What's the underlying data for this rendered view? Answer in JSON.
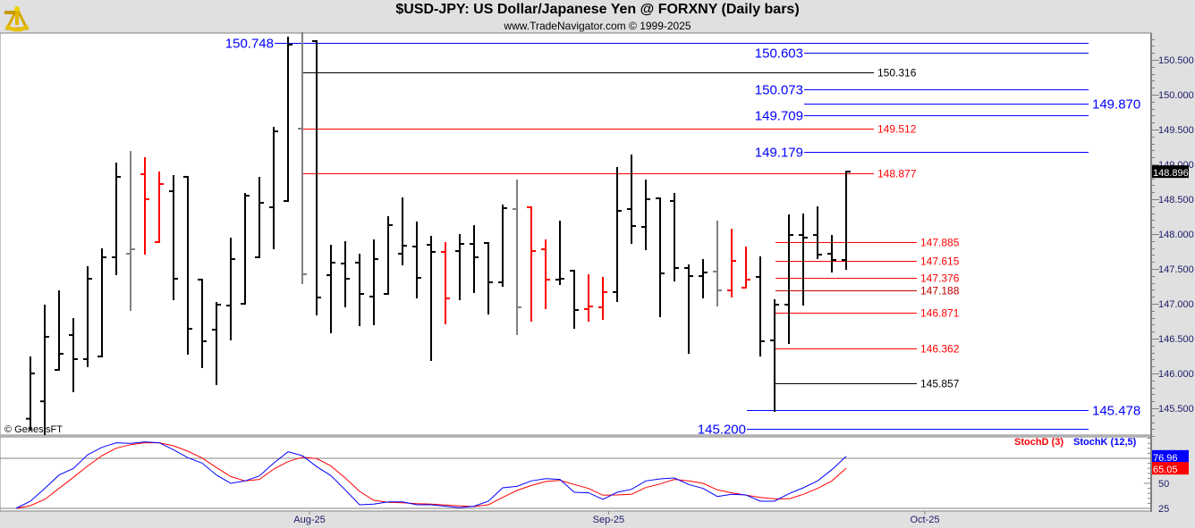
{
  "header": {
    "title": "$USD-JPY:  US Dollar/Japanese Yen @ FORXNY  (Daily bars)",
    "subtitle": "www.TradeNavigator.com © 1999-2025",
    "logo": "sextant-logo"
  },
  "watermark": "© GenesisFT",
  "colors": {
    "up": "#000000",
    "red": "#ff0000",
    "gray": "#808080",
    "blue": "#0000ff",
    "darkred": "#c00000"
  },
  "chart_data": [
    {
      "type": "ohlc",
      "title": "$USD-JPY Daily bars",
      "ylim": [
        145.05,
        150.9
      ],
      "y_ticks": [
        "145.500",
        "146.000",
        "146.500",
        "147.000",
        "147.500",
        "148.000",
        "148.500",
        "149.000",
        "149.500",
        "150.000",
        "150.500"
      ],
      "x_labels": [
        {
          "label": "Aug-25",
          "bar": 19.5
        },
        {
          "label": "Sep-25",
          "bar": 40.4
        },
        {
          "label": "Oct-25",
          "bar": 62.5
        }
      ],
      "last_price": "148.896",
      "bars": [
        {
          "o": 145.35,
          "h": 146.231,
          "l": 145.192,
          "c": 146.0,
          "color": "up"
        },
        {
          "o": 145.6,
          "h": 146.974,
          "l": 145.13,
          "c": 146.526,
          "color": "up"
        },
        {
          "o": 146.051,
          "h": 147.179,
          "l": 146.051,
          "c": 146.282,
          "color": "up"
        },
        {
          "o": 146.551,
          "h": 146.782,
          "l": 145.744,
          "c": 146.205,
          "color": "up"
        },
        {
          "o": 146.205,
          "h": 147.526,
          "l": 146.105,
          "c": 147.359,
          "color": "up"
        },
        {
          "o": 146.244,
          "h": 147.782,
          "l": 146.244,
          "c": 147.667,
          "color": "up"
        },
        {
          "o": 147.667,
          "h": 149.013,
          "l": 147.423,
          "c": 148.821,
          "color": "up"
        },
        {
          "o": 147.718,
          "h": 149.179,
          "l": 146.91,
          "c": 147.782,
          "color": "gray"
        },
        {
          "o": 148.859,
          "h": 149.09,
          "l": 147.718,
          "c": 148.5,
          "color": "red"
        },
        {
          "o": 147.885,
          "h": 148.885,
          "l": 147.885,
          "c": 148.718,
          "color": "red"
        },
        {
          "o": 148.615,
          "h": 148.833,
          "l": 147.064,
          "c": 147.359,
          "color": "up"
        },
        {
          "o": 148.821,
          "h": 148.821,
          "l": 146.282,
          "c": 146.641,
          "color": "up"
        },
        {
          "o": 147.346,
          "h": 147.346,
          "l": 146.09,
          "c": 146.462,
          "color": "up"
        },
        {
          "o": 146.628,
          "h": 147.013,
          "l": 145.846,
          "c": 146.987,
          "color": "up"
        },
        {
          "o": 146.974,
          "h": 147.936,
          "l": 146.487,
          "c": 147.641,
          "color": "up"
        },
        {
          "o": 147.0,
          "h": 148.577,
          "l": 147.0,
          "c": 148.551,
          "color": "up"
        },
        {
          "o": 147.667,
          "h": 148.808,
          "l": 147.667,
          "c": 148.449,
          "color": "up"
        },
        {
          "o": 148.385,
          "h": 149.526,
          "l": 147.795,
          "c": 149.474,
          "color": "up"
        },
        {
          "o": 148.474,
          "h": 150.82,
          "l": 148.474,
          "c": 150.718,
          "color": "up"
        },
        {
          "o": 149.513,
          "h": 150.885,
          "l": 147.295,
          "c": 147.423,
          "color": "gray"
        },
        {
          "o": 150.769,
          "h": 150.769,
          "l": 146.846,
          "c": 147.09,
          "color": "up"
        },
        {
          "o": 147.41,
          "h": 147.833,
          "l": 146.59,
          "c": 147.59,
          "color": "up"
        },
        {
          "o": 147.577,
          "h": 147.885,
          "l": 146.962,
          "c": 147.359,
          "color": "up"
        },
        {
          "o": 147.59,
          "h": 147.705,
          "l": 146.692,
          "c": 147.141,
          "color": "up"
        },
        {
          "o": 147.103,
          "h": 147.91,
          "l": 146.705,
          "c": 147.641,
          "color": "up"
        },
        {
          "o": 147.141,
          "h": 148.244,
          "l": 147.141,
          "c": 148.128,
          "color": "up"
        },
        {
          "o": 147.718,
          "h": 148.513,
          "l": 147.564,
          "c": 147.833,
          "color": "up"
        },
        {
          "o": 147.821,
          "h": 148.167,
          "l": 147.09,
          "c": 147.372,
          "color": "up"
        },
        {
          "o": 147.846,
          "h": 147.962,
          "l": 146.192,
          "c": 147.744,
          "color": "up"
        },
        {
          "o": 147.744,
          "h": 147.872,
          "l": 146.718,
          "c": 147.077,
          "color": "red"
        },
        {
          "o": 147.756,
          "h": 147.987,
          "l": 147.064,
          "c": 147.859,
          "color": "up"
        },
        {
          "o": 147.859,
          "h": 148.115,
          "l": 147.167,
          "c": 147.667,
          "color": "up"
        },
        {
          "o": 147.872,
          "h": 147.872,
          "l": 146.859,
          "c": 147.308,
          "color": "up"
        },
        {
          "o": 147.308,
          "h": 148.41,
          "l": 147.256,
          "c": 148.372,
          "color": "up"
        },
        {
          "o": 148.359,
          "h": 148.769,
          "l": 146.564,
          "c": 146.949,
          "color": "gray"
        },
        {
          "o": 148.385,
          "h": 148.385,
          "l": 146.756,
          "c": 147.756,
          "color": "red"
        },
        {
          "o": 147.782,
          "h": 147.91,
          "l": 146.936,
          "c": 147.346,
          "color": "red"
        },
        {
          "o": 147.346,
          "h": 148.179,
          "l": 147.282,
          "c": 147.359,
          "color": "up"
        },
        {
          "o": 147.474,
          "h": 147.474,
          "l": 146.654,
          "c": 146.91,
          "color": "up"
        },
        {
          "o": 146.923,
          "h": 147.41,
          "l": 146.756,
          "c": 146.962,
          "color": "red"
        },
        {
          "o": 146.949,
          "h": 147.372,
          "l": 146.782,
          "c": 147.167,
          "color": "red"
        },
        {
          "o": 147.167,
          "h": 148.949,
          "l": 147.038,
          "c": 148.333,
          "color": "up"
        },
        {
          "o": 148.359,
          "h": 149.128,
          "l": 147.872,
          "c": 148.115,
          "color": "up"
        },
        {
          "o": 148.103,
          "h": 148.769,
          "l": 147.782,
          "c": 148.5,
          "color": "up"
        },
        {
          "o": 148.513,
          "h": 148.513,
          "l": 146.821,
          "c": 147.436,
          "color": "up"
        },
        {
          "o": 148.474,
          "h": 148.577,
          "l": 147.333,
          "c": 147.513,
          "color": "up"
        },
        {
          "o": 147.513,
          "h": 147.551,
          "l": 146.295,
          "c": 147.397,
          "color": "up"
        },
        {
          "o": 147.397,
          "h": 147.628,
          "l": 147.09,
          "c": 147.449,
          "color": "up"
        },
        {
          "o": 147.462,
          "h": 148.179,
          "l": 146.974,
          "c": 147.192,
          "color": "gray"
        },
        {
          "o": 147.192,
          "h": 148.064,
          "l": 147.103,
          "c": 147.615,
          "color": "red"
        },
        {
          "o": 147.231,
          "h": 147.808,
          "l": 147.231,
          "c": 147.346,
          "color": "red"
        },
        {
          "o": 147.385,
          "h": 147.667,
          "l": 146.256,
          "c": 146.462,
          "color": "up"
        },
        {
          "o": 146.474,
          "h": 147.051,
          "l": 145.462,
          "c": 146.987,
          "color": "up"
        },
        {
          "o": 146.987,
          "h": 148.269,
          "l": 146.436,
          "c": 147.987,
          "color": "up"
        },
        {
          "o": 147.987,
          "h": 148.282,
          "l": 146.987,
          "c": 147.949,
          "color": "up"
        },
        {
          "o": 147.987,
          "h": 148.385,
          "l": 147.654,
          "c": 147.705,
          "color": "up"
        },
        {
          "o": 147.718,
          "h": 147.974,
          "l": 147.462,
          "c": 147.628,
          "color": "up"
        },
        {
          "o": 147.628,
          "h": 148.897,
          "l": 147.5,
          "c": 148.896,
          "color": "up"
        }
      ],
      "levels": [
        {
          "label": "150.748",
          "value": 150.748,
          "color": "blue",
          "start_bar": 17,
          "extent": "long",
          "label_side": "left",
          "style": "major"
        },
        {
          "label": "150.603",
          "value": 150.603,
          "color": "blue",
          "start_bar": 54,
          "extent": "long",
          "label_side": "left",
          "style": "major"
        },
        {
          "label": "150.316",
          "value": 150.316,
          "color": "up",
          "start_bar": 19,
          "extent": "medium",
          "label_side": "right",
          "style": "minor"
        },
        {
          "label": "150.073",
          "value": 150.073,
          "color": "blue",
          "start_bar": 54,
          "extent": "long",
          "label_side": "left",
          "style": "major"
        },
        {
          "label": "149.870",
          "value": 149.87,
          "color": "blue",
          "start_bar": 54,
          "extent": "long",
          "label_side": "right",
          "style": "major"
        },
        {
          "label": "149.709",
          "value": 149.709,
          "color": "blue",
          "start_bar": 54,
          "extent": "long",
          "label_side": "left",
          "style": "major"
        },
        {
          "label": "149.512",
          "value": 149.512,
          "color": "red",
          "start_bar": 19,
          "extent": "medium",
          "label_side": "right",
          "style": "minor"
        },
        {
          "label": "149.179",
          "value": 149.179,
          "color": "blue",
          "start_bar": 54,
          "extent": "long",
          "label_side": "left",
          "style": "major"
        },
        {
          "label": "148.877",
          "value": 148.877,
          "color": "red",
          "start_bar": 19,
          "extent": "medium",
          "label_side": "right",
          "style": "minor"
        },
        {
          "label": "147.885",
          "value": 147.885,
          "color": "red",
          "start_bar": 52,
          "extent": "short",
          "label_side": "right",
          "style": "minor"
        },
        {
          "label": "147.615",
          "value": 147.615,
          "color": "red",
          "start_bar": 52,
          "extent": "short",
          "label_side": "right",
          "style": "minor"
        },
        {
          "label": "147.376",
          "value": 147.376,
          "color": "red",
          "start_bar": 52,
          "extent": "short",
          "label_side": "right",
          "style": "minor"
        },
        {
          "label": "147.188",
          "value": 147.188,
          "color": "darkred",
          "start_bar": 52,
          "extent": "short",
          "label_side": "right",
          "style": "minor"
        },
        {
          "label": "146.871",
          "value": 146.871,
          "color": "red",
          "start_bar": 52,
          "extent": "short",
          "label_side": "right",
          "style": "minor"
        },
        {
          "label": "146.362",
          "value": 146.362,
          "color": "red",
          "start_bar": 52,
          "extent": "short",
          "label_side": "right",
          "style": "minor"
        },
        {
          "label": "145.857",
          "value": 145.857,
          "color": "up",
          "start_bar": 52,
          "extent": "short",
          "label_side": "right",
          "style": "minor"
        },
        {
          "label": "145.478",
          "value": 145.478,
          "color": "blue",
          "start_bar": 50,
          "extent": "long",
          "label_side": "right",
          "style": "major"
        },
        {
          "label": "145.200",
          "value": 145.2,
          "color": "blue",
          "start_bar": 50,
          "extent": "long",
          "label_side": "left",
          "style": "major"
        }
      ]
    },
    {
      "type": "line",
      "title": "Stochastic",
      "ylim": [
        22,
        96
      ],
      "y_ticks": [
        "50",
        "25"
      ],
      "reference_lines": [
        75,
        25
      ],
      "legend": [
        {
          "name": "StochD (3)",
          "color": "red"
        },
        {
          "name": "StochK (12,5)",
          "color": "blue"
        }
      ],
      "legend_placement": "top-right",
      "series": [
        {
          "name": "StochK (12,5)",
          "color": "blue",
          "last_label": "76.96",
          "values": [
            32.1,
            44.9,
            58.3,
            64.9,
            78.6,
            86,
            90.5,
            89.9,
            91.4,
            90.5,
            83.6,
            75.6,
            70.2,
            58.3,
            50,
            52.4,
            57.4,
            70.2,
            81.5,
            77.7,
            66.7,
            57.7,
            43.5,
            28.6,
            29.2,
            31.5,
            31.5,
            28.6,
            28.6,
            27.1,
            25.6,
            27.1,
            32.1,
            45.5,
            47,
            52.4,
            54.7,
            53.9,
            41.1,
            40.5,
            33.9,
            41.1,
            44,
            52.4,
            54.5,
            55.4,
            48.8,
            44.9,
            36.9,
            39,
            38.4,
            32.1,
            32.1,
            39.6,
            45.5,
            52.4,
            63.7,
            76.96
          ]
        },
        {
          "name": "StochD (3)",
          "color": "red",
          "last_label": "65.05",
          "values": [
            27.7,
            33.9,
            44.9,
            56,
            67.3,
            77.7,
            85.1,
            88.7,
            90.5,
            90.5,
            87.5,
            82.1,
            75.3,
            65.8,
            56.8,
            52.4,
            53.9,
            64.3,
            71.7,
            76.2,
            74.7,
            67.3,
            55.4,
            42,
            33,
            31,
            30.6,
            29.7,
            29.2,
            28.3,
            27.4,
            26.8,
            28.6,
            36,
            42.9,
            47.9,
            51.8,
            53,
            48.8,
            44.9,
            38.1,
            38.4,
            39,
            45.8,
            49.4,
            53.9,
            52.4,
            50,
            43.5,
            40.5,
            38.1,
            36,
            34.5,
            34.5,
            39,
            44.9,
            52.4,
            65.05
          ]
        }
      ]
    }
  ]
}
